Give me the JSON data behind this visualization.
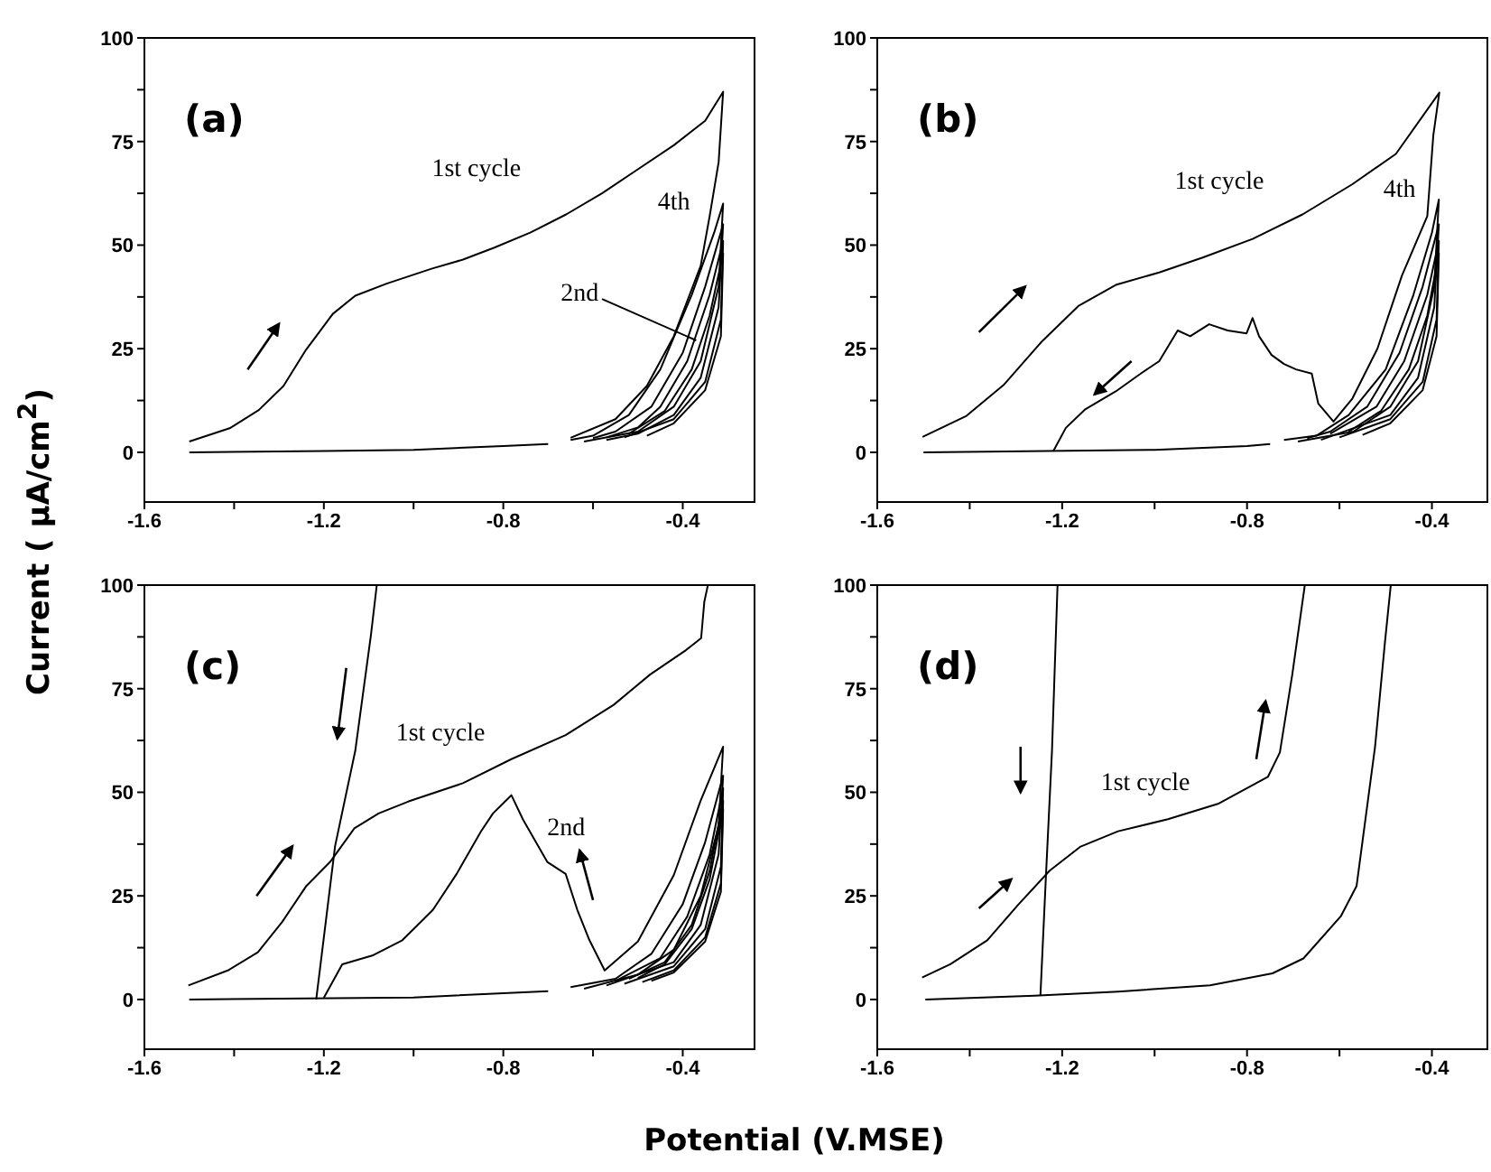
{
  "chart_data": [
    {
      "type": "line",
      "ylabel": "Current ( μA/cm$^{2}$)",
      "xlim": [
        -1.6,
        -0.24
      ],
      "ylim": [
        -12,
        100
      ],
      "xticks": [
        -1.6,
        {
          "value": -1.4,
          "label": null
        },
        -1.2,
        {
          "value": -1.0,
          "label": null
        },
        -0.8,
        {
          "value": -0.6,
          "label": null
        },
        -0.4
      ],
      "yticks": [
        0,
        {
          "value": 12.5,
          "label": null
        },
        25,
        {
          "value": 37.5,
          "label": null
        },
        50,
        {
          "value": 62.5,
          "label": null
        },
        75,
        {
          "value": 87.5,
          "label": null
        },
        100
      ],
      "annotations": [
        "(a)",
        "1st cycle",
        "4th",
        {
          "text": "2nd",
          "x": -0.37,
          "y": 27
        }
      ],
      "series": [
        {
          "color": "#000000",
          "x": [
            -1.5,
            -1.2,
            -1.0,
            -0.8,
            -0.7
          ],
          "values": [
            0,
            0.3,
            0.6,
            1.5,
            2
          ]
        },
        {
          "color": "#000000",
          "x": [
            -1.5,
            -1.41,
            -1.345,
            -1.29,
            -1.24,
            -1.18,
            -1.13,
            -1.06,
            -0.96,
            -0.89,
            -0.82,
            -0.74,
            -0.66,
            -0.58,
            -0.5,
            -0.42,
            -0.35,
            -0.31,
            -0.32,
            -0.34,
            -0.36,
            -0.42,
            -0.48,
            -0.55,
            -0.65
          ],
          "values": [
            2.6,
            5.8,
            10.2,
            16,
            24.7,
            33.4,
            37.8,
            40.7,
            44.3,
            46.5,
            49.4,
            53,
            57.4,
            62.5,
            68.3,
            74.1,
            80,
            87,
            70,
            57,
            45,
            28,
            16,
            8,
            3.5
          ]
        },
        {
          "color": "#000000",
          "x": [
            -0.65,
            -0.6,
            -0.52,
            -0.45,
            -0.38,
            -0.33,
            -0.31,
            -0.32,
            -0.36,
            -0.42,
            -0.5,
            -0.62
          ],
          "values": [
            3,
            4,
            9,
            20,
            38,
            53,
            60,
            40,
            22,
            11,
            5,
            2.6
          ]
        },
        {
          "color": "#000000",
          "x": [
            -0.6,
            -0.55,
            -0.47,
            -0.4,
            -0.35,
            -0.31,
            -0.32,
            -0.36,
            -0.42,
            -0.5,
            -0.57
          ],
          "values": [
            3.4,
            5,
            11,
            24,
            40,
            55,
            35,
            18,
            9,
            4.5,
            3
          ]
        },
        {
          "color": "#000000",
          "x": [
            -0.57,
            -0.5,
            -0.45,
            -0.39,
            -0.34,
            -0.31,
            -0.315,
            -0.35,
            -0.42,
            -0.53
          ],
          "values": [
            3.6,
            6,
            11,
            22,
            38,
            51,
            32,
            17,
            8,
            3.6
          ]
        },
        {
          "color": "#000000",
          "x": [
            -0.52,
            -0.44,
            -0.38,
            -0.34,
            -0.31,
            -0.315,
            -0.35,
            -0.42,
            -0.48
          ],
          "values": [
            4.5,
            10,
            20,
            33,
            48,
            28,
            15,
            7,
            4
          ]
        }
      ]
    },
    {
      "type": "line",
      "xlim": [
        -1.6,
        -0.28
      ],
      "ylim": [
        -12,
        100
      ],
      "xticks": [
        -1.6,
        {
          "value": -1.4,
          "label": null
        },
        -1.2,
        {
          "value": -1.0,
          "label": null
        },
        -0.8,
        {
          "value": -0.6,
          "label": null
        },
        -0.4
      ],
      "yticks": [
        0,
        {
          "value": 12.5,
          "label": null
        },
        25,
        {
          "value": 37.5,
          "label": null
        },
        50,
        {
          "value": 62.5,
          "label": null
        },
        75,
        {
          "value": 87.5,
          "label": null
        },
        100
      ],
      "annotations": [
        "(b)",
        "1st cycle",
        "4th"
      ],
      "series": [
        {
          "color": "#000000",
          "x": [
            -1.5,
            -1.0,
            -0.8,
            -0.75
          ],
          "values": [
            0,
            0.6,
            1.5,
            2
          ]
        },
        {
          "color": "#000000",
          "x": [
            -1.502,
            -1.407,
            -1.327,
            -1.246,
            -1.165,
            -1.084,
            -0.99,
            -0.896,
            -0.788,
            -0.68,
            -0.572,
            -0.478,
            -0.384,
            -0.397,
            -0.41,
            -0.465,
            -0.518,
            -0.572,
            -0.613,
            -0.646,
            -0.66,
            -0.694,
            -0.72,
            -0.747,
            -0.774,
            -0.788,
            -0.801,
            -0.842,
            -0.882,
            -0.923,
            -0.95,
            -0.99,
            -1.03,
            -1.084,
            -1.151,
            -1.192,
            -1.219
          ],
          "values": [
            3.7,
            8.8,
            16.2,
            26.5,
            35.3,
            40.4,
            43.4,
            47,
            51.5,
            57.4,
            64.7,
            72,
            86.8,
            76.5,
            57,
            42.6,
            25,
            13,
            7.4,
            11.8,
            19,
            20,
            21.3,
            23.5,
            28,
            32.4,
            28.7,
            29.4,
            30.9,
            28,
            29.4,
            22,
            19,
            14.7,
            10.3,
            5.9,
            0.3
          ]
        },
        {
          "color": "#000000",
          "x": [
            -0.72,
            -0.65,
            -0.58,
            -0.5,
            -0.44,
            -0.4,
            -0.385,
            -0.395,
            -0.43,
            -0.49,
            -0.57,
            -0.69
          ],
          "values": [
            3,
            4,
            9,
            20,
            38,
            53,
            61,
            40,
            22,
            11,
            5,
            2.6
          ]
        },
        {
          "color": "#000000",
          "x": [
            -0.67,
            -0.62,
            -0.54,
            -0.47,
            -0.42,
            -0.385,
            -0.395,
            -0.43,
            -0.49,
            -0.64
          ],
          "values": [
            3.4,
            5,
            11,
            24,
            40,
            55,
            35,
            18,
            9,
            3
          ]
        },
        {
          "color": "#000000",
          "x": [
            -0.62,
            -0.52,
            -0.46,
            -0.41,
            -0.385,
            -0.39,
            -0.42,
            -0.49,
            -0.6
          ],
          "values": [
            4.5,
            11,
            22,
            38,
            51,
            32,
            17,
            8,
            3.6
          ]
        },
        {
          "color": "#000000",
          "x": [
            -0.58,
            -0.51,
            -0.45,
            -0.41,
            -0.385,
            -0.39,
            -0.42,
            -0.49,
            -0.55
          ],
          "values": [
            5,
            10,
            20,
            33,
            48,
            28,
            15,
            7,
            4.2
          ]
        }
      ]
    },
    {
      "type": "line",
      "xlabel": "Potential (V.MSE)",
      "xlim": [
        -1.6,
        -0.24
      ],
      "ylim": [
        -12,
        100
      ],
      "xticks": [
        -1.6,
        {
          "value": -1.4,
          "label": null
        },
        -1.2,
        {
          "value": -1.0,
          "label": null
        },
        -0.8,
        {
          "value": -0.6,
          "label": null
        },
        -0.4
      ],
      "yticks": [
        0,
        {
          "value": 12.5,
          "label": null
        },
        25,
        {
          "value": 37.5,
          "label": null
        },
        50,
        {
          "value": 62.5,
          "label": null
        },
        75,
        {
          "value": 87.5,
          "label": null
        },
        100
      ],
      "annotations": [
        "(c)",
        "1st cycle",
        "2nd"
      ],
      "series": [
        {
          "color": "#000000",
          "x": [
            -1.5,
            -1.0,
            -0.8,
            -0.7
          ],
          "values": [
            0,
            0.5,
            1.5,
            2
          ]
        },
        {
          "color": "#000000",
          "x": [
            -1.502,
            -1.414,
            -1.347,
            -1.293,
            -1.239,
            -1.186,
            -1.132,
            -1.078,
            -1.011,
            -0.89,
            -0.782,
            -0.661,
            -0.554,
            -0.473,
            -0.393,
            -0.359,
            -0.352,
            -0.344
          ],
          "values": [
            3.4,
            7,
            11.4,
            18.7,
            27.4,
            33.2,
            41.3,
            44.9,
            47.8,
            52.2,
            58,
            63.8,
            71.1,
            78.4,
            84.3,
            87.2,
            95.9,
            100
          ]
        },
        {
          "color": "#000000",
          "x": [
            -1.082,
            -1.095,
            -1.13,
            -1.175,
            -1.217
          ],
          "values": [
            100,
            88,
            60,
            37,
            0
          ]
        },
        {
          "color": "#000000",
          "x": [
            -1.2,
            -1.159,
            -1.092,
            -1.025,
            -0.957,
            -0.904,
            -0.85,
            -0.823,
            -0.782,
            -0.756,
            -0.702,
            -0.661,
            -0.635,
            -0.608,
            -0.574,
            -0.5,
            -0.42,
            -0.36,
            -0.31,
            -0.32,
            -0.36,
            -0.42,
            -0.5,
            -0.62
          ],
          "values": [
            0.4,
            8.5,
            10.6,
            14.3,
            21.6,
            30.3,
            40.5,
            44.9,
            49.3,
            43.4,
            33.2,
            30.3,
            21.6,
            14.3,
            7,
            14,
            30,
            48,
            61,
            42,
            25,
            12,
            6,
            2.6
          ]
        },
        {
          "color": "#000000",
          "x": [
            -0.65,
            -0.55,
            -0.47,
            -0.4,
            -0.35,
            -0.31,
            -0.32,
            -0.36,
            -0.42,
            -0.57
          ],
          "values": [
            3,
            5,
            11,
            23,
            38,
            54,
            35,
            18,
            9,
            3.4
          ]
        },
        {
          "color": "#000000",
          "x": [
            -0.55,
            -0.45,
            -0.39,
            -0.34,
            -0.31,
            -0.315,
            -0.35,
            -0.42,
            -0.53
          ],
          "values": [
            4.5,
            10,
            20,
            35,
            51,
            32,
            17,
            8,
            3.8
          ]
        },
        {
          "color": "#000000",
          "x": [
            -0.52,
            -0.44,
            -0.38,
            -0.34,
            -0.31,
            -0.315,
            -0.35,
            -0.42,
            -0.49
          ],
          "values": [
            5,
            9,
            18,
            31,
            48,
            28,
            15,
            7,
            4.2
          ]
        },
        {
          "color": "#000000",
          "x": [
            -0.5,
            -0.44,
            -0.38,
            -0.34,
            -0.31,
            -0.315,
            -0.35,
            -0.42,
            -0.47
          ],
          "values": [
            5.2,
            8.5,
            17,
            29,
            46,
            26,
            14,
            6.5,
            4.5
          ]
        }
      ]
    },
    {
      "type": "line",
      "xlim": [
        -1.6,
        -0.28
      ],
      "ylim": [
        -12,
        100
      ],
      "xticks": [
        -1.6,
        {
          "value": -1.4,
          "label": null
        },
        -1.2,
        {
          "value": -1.0,
          "label": null
        },
        -0.8,
        {
          "value": -0.6,
          "label": null
        },
        -0.4
      ],
      "yticks": [
        0,
        {
          "value": 12.5,
          "label": null
        },
        25,
        {
          "value": 37.5,
          "label": null
        },
        50,
        {
          "value": 62.5,
          "label": null
        },
        75,
        {
          "value": 87.5,
          "label": null
        },
        100
      ],
      "annotations": [
        "(d)",
        "1st cycle"
      ],
      "series": [
        {
          "color": "#000000",
          "x": [
            -1.503,
            -1.442,
            -1.362,
            -1.294,
            -1.227,
            -1.16,
            -1.079,
            -0.971,
            -0.863,
            -0.755,
            -0.729,
            -0.702,
            -0.675
          ],
          "values": [
            5.3,
            8.5,
            14.3,
            23,
            31.1,
            36.9,
            40.6,
            43.5,
            47.2,
            53.7,
            59.6,
            78.5,
            100
          ]
        },
        {
          "color": "#000000",
          "x": [
            -0.489,
            -0.502,
            -0.523,
            -0.563,
            -0.597,
            -0.678,
            -0.745,
            -0.88,
            -1.079,
            -1.26,
            -1.496
          ],
          "values": [
            100,
            85.8,
            61,
            27.4,
            20.1,
            9.9,
            6.3,
            3.4,
            1.9,
            0.9,
            0
          ]
        },
        {
          "color": "#000000",
          "x": [
            -1.247,
            -1.235,
            -1.222,
            -1.21
          ],
          "values": [
            1,
            30,
            60,
            100
          ]
        }
      ]
    }
  ]
}
